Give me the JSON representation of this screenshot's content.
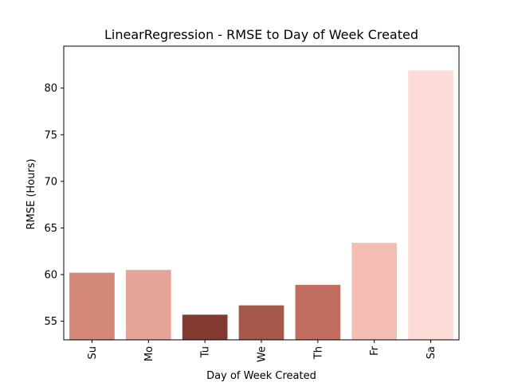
{
  "chart_data": {
    "type": "bar",
    "title": "LinearRegression - RMSE to Day of Week Created",
    "xlabel": "Day of Week Created",
    "ylabel": "RMSE (Hours)",
    "categories": [
      "Su",
      "Mo",
      "Tu",
      "We",
      "Th",
      "Fr",
      "Sa"
    ],
    "values": [
      60.2,
      60.5,
      55.7,
      56.7,
      58.9,
      63.4,
      81.9
    ],
    "ylim": [
      53.0,
      84.5
    ],
    "yticks": [
      55,
      60,
      65,
      70,
      75,
      80
    ],
    "ytick_labels": [
      "55",
      "60",
      "65",
      "70",
      "75",
      "80"
    ],
    "xtick_rotation": "vertical",
    "grid": false,
    "legend": "none",
    "bar_colors": [
      "#d48878",
      "#e6a397",
      "#843a31",
      "#a5574a",
      "#c06d60",
      "#f4bdb3",
      "#fcdcd6"
    ]
  }
}
